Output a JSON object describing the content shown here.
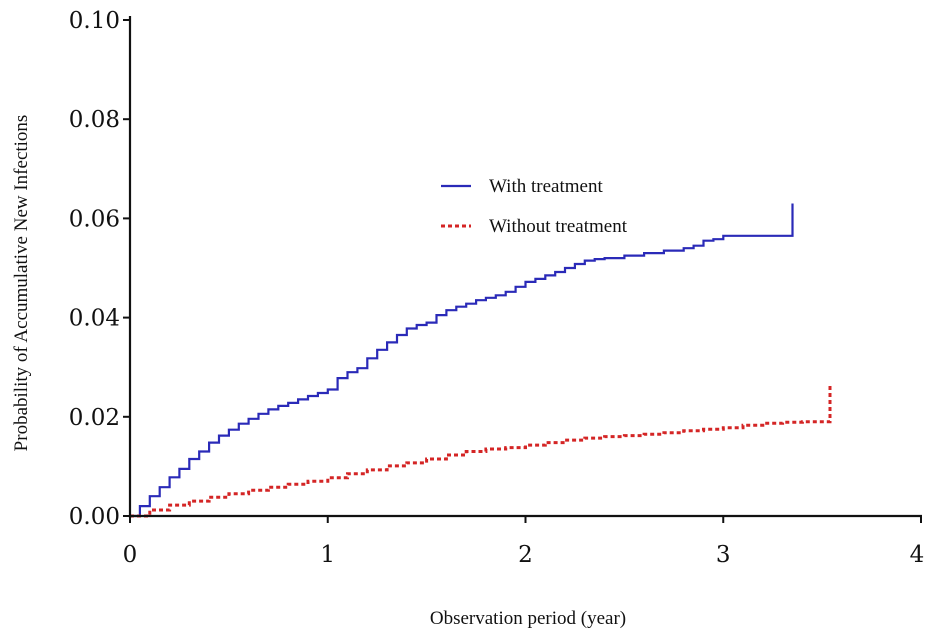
{
  "chart_data": {
    "type": "line",
    "title": "",
    "xlabel": "Observation period (year)",
    "ylabel": "Probability of Accumulative New Infections",
    "xlim": [
      0,
      4
    ],
    "ylim": [
      0,
      0.1
    ],
    "xticks": [
      0,
      1,
      2,
      3,
      4
    ],
    "xtick_labels": [
      "0",
      "1",
      "2",
      "3",
      "4"
    ],
    "yticks": [
      0,
      0.02,
      0.04,
      0.06,
      0.08,
      0.1
    ],
    "ytick_labels": [
      "0.00",
      "0.02",
      "0.04",
      "0.06",
      "0.08",
      "0.10"
    ],
    "grid": false,
    "legend_position": "center-right",
    "series": [
      {
        "name": "With treatment",
        "color": "#2a2ab8",
        "style": "solid",
        "step": true,
        "x": [
          0,
          0.05,
          0.1,
          0.15,
          0.2,
          0.25,
          0.3,
          0.35,
          0.4,
          0.45,
          0.5,
          0.55,
          0.6,
          0.65,
          0.7,
          0.75,
          0.8,
          0.85,
          0.9,
          0.95,
          1.0,
          1.05,
          1.1,
          1.15,
          1.2,
          1.25,
          1.3,
          1.35,
          1.4,
          1.45,
          1.5,
          1.55,
          1.6,
          1.65,
          1.7,
          1.75,
          1.8,
          1.85,
          1.9,
          1.95,
          2.0,
          2.05,
          2.1,
          2.15,
          2.2,
          2.25,
          2.3,
          2.35,
          2.4,
          2.5,
          2.6,
          2.7,
          2.8,
          2.85,
          2.9,
          2.95,
          3.0,
          3.1,
          3.2,
          3.3,
          3.35,
          3.35
        ],
        "y": [
          0,
          0.002,
          0.004,
          0.0058,
          0.0078,
          0.0095,
          0.0115,
          0.013,
          0.0148,
          0.0162,
          0.0174,
          0.0186,
          0.0196,
          0.0206,
          0.0215,
          0.0222,
          0.0228,
          0.0235,
          0.0242,
          0.0248,
          0.0255,
          0.0278,
          0.029,
          0.0298,
          0.0318,
          0.0335,
          0.035,
          0.0365,
          0.0378,
          0.0385,
          0.039,
          0.0405,
          0.0415,
          0.0422,
          0.0428,
          0.0435,
          0.044,
          0.0445,
          0.0452,
          0.0462,
          0.0472,
          0.0478,
          0.0485,
          0.0492,
          0.05,
          0.0508,
          0.0515,
          0.0518,
          0.052,
          0.0525,
          0.053,
          0.0535,
          0.054,
          0.0545,
          0.0555,
          0.0558,
          0.0565,
          0.0565,
          0.0565,
          0.0565,
          0.0565,
          0.063
        ]
      },
      {
        "name": "Without treatment",
        "color": "#d42525",
        "style": "dotted",
        "step": true,
        "x": [
          0,
          0.1,
          0.2,
          0.3,
          0.4,
          0.5,
          0.6,
          0.7,
          0.8,
          0.9,
          1.0,
          1.1,
          1.2,
          1.3,
          1.4,
          1.5,
          1.6,
          1.7,
          1.8,
          1.9,
          2.0,
          2.1,
          2.2,
          2.3,
          2.4,
          2.5,
          2.6,
          2.7,
          2.8,
          2.9,
          3.0,
          3.1,
          3.2,
          3.3,
          3.4,
          3.5,
          3.54,
          3.54
        ],
        "y": [
          0,
          0.0012,
          0.0022,
          0.003,
          0.0038,
          0.0045,
          0.0052,
          0.0058,
          0.0064,
          0.007,
          0.0077,
          0.0085,
          0.0093,
          0.0101,
          0.0107,
          0.0115,
          0.0123,
          0.013,
          0.0135,
          0.0138,
          0.0143,
          0.0148,
          0.0153,
          0.0157,
          0.016,
          0.0162,
          0.0165,
          0.0168,
          0.0172,
          0.0175,
          0.0178,
          0.0183,
          0.0187,
          0.0189,
          0.019,
          0.019,
          0.019,
          0.0265
        ]
      }
    ]
  }
}
